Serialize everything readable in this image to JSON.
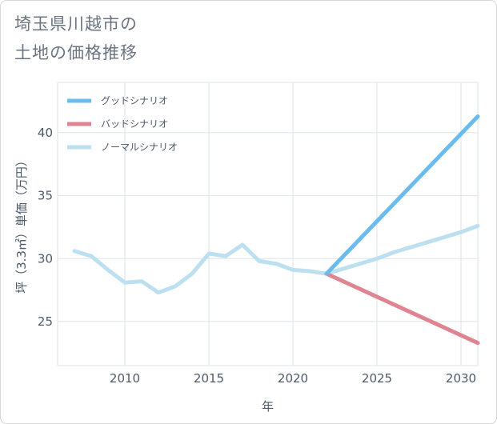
{
  "title_lines": [
    "埼玉県川越市の",
    "土地の価格推移"
  ],
  "chart_data": {
    "type": "line",
    "xlabel": "年",
    "ylabel": "坪（3.3㎡）単価（万円）",
    "xlim": [
      2006,
      2031
    ],
    "ylim": [
      21.5,
      44
    ],
    "x_ticks": [
      2010,
      2015,
      2020,
      2025,
      2030
    ],
    "y_ticks": [
      25,
      30,
      35,
      40
    ],
    "grid": true,
    "legend_position": "top-left",
    "series": [
      {
        "name": "グッドシナリオ",
        "color": "#6bbcee",
        "x": [
          2022,
          2031
        ],
        "y": [
          28.8,
          41.3
        ]
      },
      {
        "name": "バッドシナリオ",
        "color": "#de8591",
        "x": [
          2022,
          2031
        ],
        "y": [
          28.8,
          23.3
        ]
      },
      {
        "name": "ノーマルシナリオ",
        "color": "#bde0f0",
        "x": [
          2007,
          2008,
          2009,
          2010,
          2011,
          2012,
          2013,
          2014,
          2015,
          2016,
          2017,
          2018,
          2019,
          2020,
          2021,
          2022,
          2023,
          2024,
          2025,
          2026,
          2027,
          2028,
          2029,
          2030,
          2031
        ],
        "y": [
          30.6,
          30.2,
          29.1,
          28.1,
          28.2,
          27.3,
          27.8,
          28.8,
          30.4,
          30.2,
          31.1,
          29.8,
          29.6,
          29.1,
          29.0,
          28.8,
          29.2,
          29.6,
          30.0,
          30.5,
          30.9,
          31.3,
          31.7,
          32.1,
          32.6
        ]
      }
    ]
  }
}
